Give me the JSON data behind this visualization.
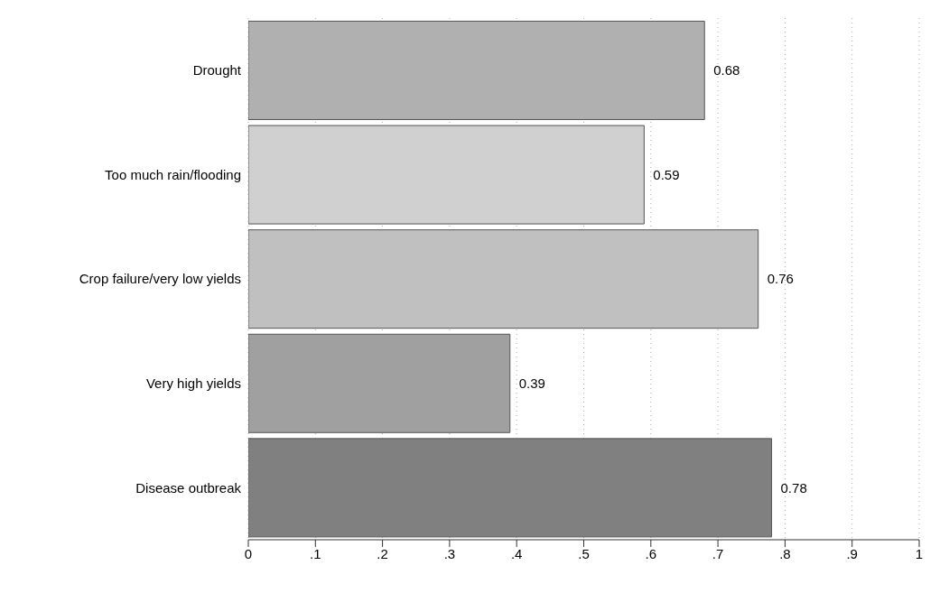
{
  "chart_data": {
    "type": "bar",
    "orientation": "horizontal",
    "categories": [
      "Drought",
      "Too much rain/flooding",
      "Crop failure/very low yields",
      "Very high yields",
      "Disease outbreak"
    ],
    "values": [
      0.68,
      0.59,
      0.76,
      0.39,
      0.78
    ],
    "colors": [
      "#b0b0b0",
      "#d0d0d0",
      "#c0c0c0",
      "#a0a0a0",
      "#808080"
    ],
    "xlim": [
      0,
      1
    ],
    "xticks": [
      0,
      {
        "value": 0.1,
        "label": ".1"
      },
      {
        "value": 0.2,
        "label": ".2"
      },
      {
        "value": 0.3,
        "label": ".3"
      },
      {
        "value": 0.4,
        "label": ".4"
      },
      {
        "value": 0.5,
        "label": ".5"
      },
      {
        "value": 0.6,
        "label": ".6"
      },
      {
        "value": 0.7,
        "label": ".7"
      },
      {
        "value": 0.8,
        "label": ".8"
      },
      {
        "value": 0.9,
        "label": ".9"
      },
      1
    ],
    "grid": "x",
    "data_labels": true
  }
}
